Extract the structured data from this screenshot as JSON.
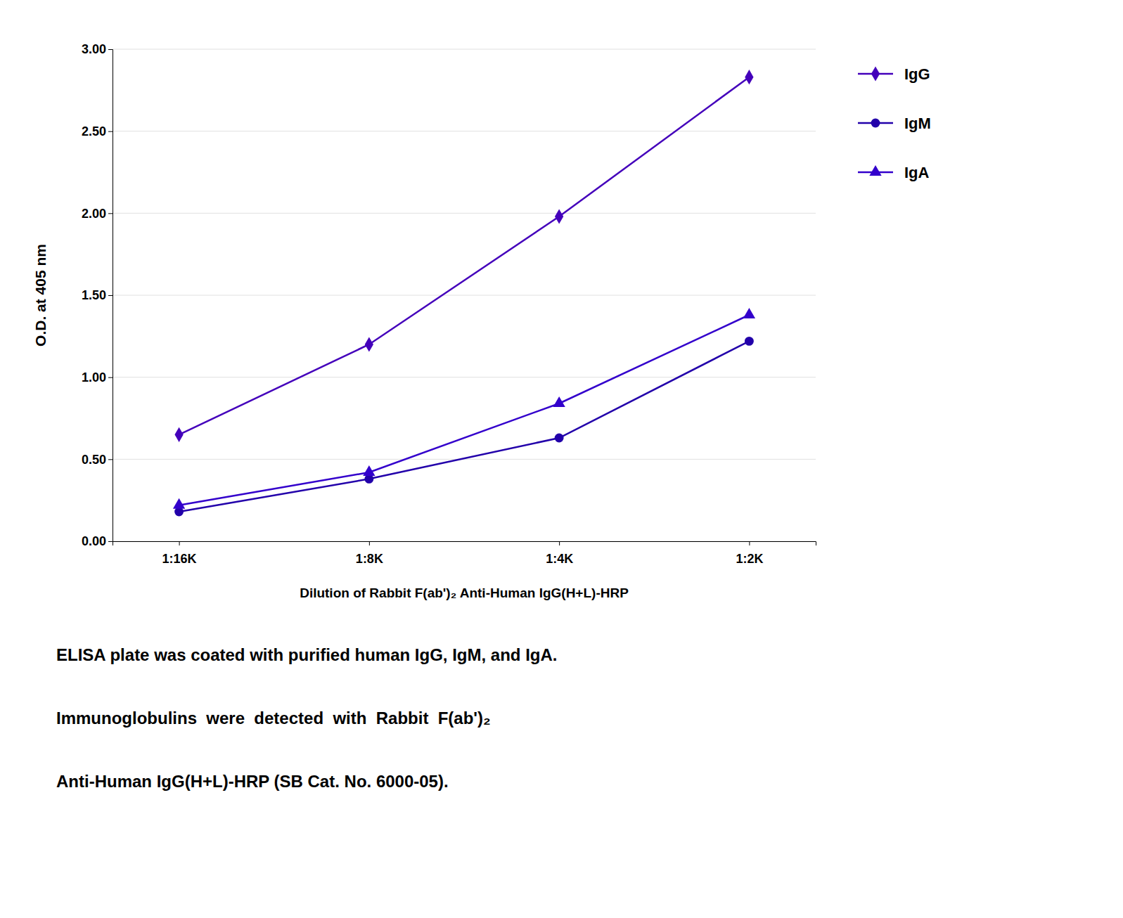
{
  "chart_data": {
    "type": "line",
    "categories": [
      "1:16K",
      "1:8K",
      "1:4K",
      "1:2K"
    ],
    "series": [
      {
        "name": "IgG",
        "color": "#4400BB",
        "marker": "diamond",
        "values": [
          0.65,
          1.2,
          1.98,
          2.83
        ]
      },
      {
        "name": "IgM",
        "color": "#2200AA",
        "marker": "circle",
        "values": [
          0.18,
          0.38,
          0.63,
          1.22
        ]
      },
      {
        "name": "IgA",
        "color": "#3300CC",
        "marker": "triangle",
        "values": [
          0.22,
          0.42,
          0.84,
          1.38
        ]
      }
    ],
    "x_label": "Dilution of Rabbit F(ab')₂ Anti-Human IgG(H+L)-HRP",
    "y_label": "O.D. at 405 nm",
    "ylim": [
      0.0,
      3.0
    ],
    "yticks": [
      {
        "value": 0.0,
        "label": "0.00"
      },
      {
        "value": 0.5,
        "label": "0.50"
      },
      {
        "value": 1.0,
        "label": "1.00"
      },
      {
        "value": 1.5,
        "label": "1.50"
      },
      {
        "value": 2.0,
        "label": "2.00"
      },
      {
        "value": 2.5,
        "label": "2.50"
      },
      {
        "value": 3.0,
        "label": "3.00"
      }
    ],
    "grid": true,
    "legend": "right",
    "annotations": [
      "ELISA plate was coated with purified human IgG, IgM, and IgA.",
      "Immunoglobulins  were  detected  with  Rabbit  F(ab')₂",
      "Anti-Human IgG(H+L)-HRP (SB Cat. No. 6000-05)."
    ]
  }
}
